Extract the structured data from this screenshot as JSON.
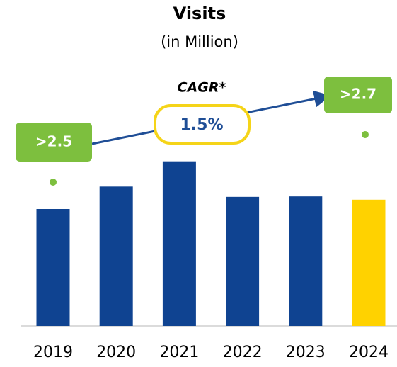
{
  "chart_data": {
    "type": "bar",
    "title": "Visits",
    "subtitle": "(in Million)",
    "categories": [
      "2019",
      "2020",
      "2021",
      "2022",
      "2023",
      "2024"
    ],
    "values": [
      2.5,
      2.98,
      3.52,
      2.76,
      2.77,
      2.7
    ],
    "colors": [
      "#0f4391",
      "#0f4391",
      "#0f4391",
      "#0f4391",
      "#0f4391",
      "#ffd200"
    ],
    "annotations": {
      "cagr_label": "CAGR*",
      "cagr_value": "1.5%",
      "start": ">2.5",
      "end": ">2.7"
    }
  }
}
